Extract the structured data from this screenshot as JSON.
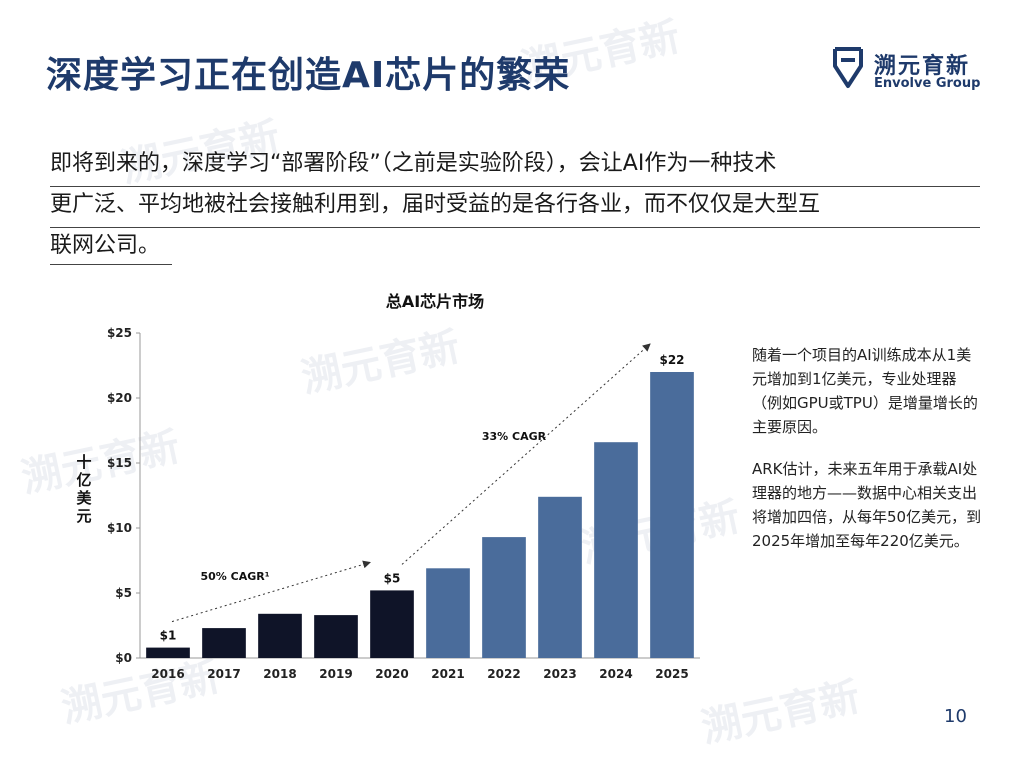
{
  "slide": {
    "title": "深度学习正在创造AI芯片的繁荣",
    "logo_cn": "溯元育新",
    "logo_en": "Envolve Group",
    "intro_lines": [
      "即将到来的，深度学习“部署阶段”（之前是实验阶段），会让AI作为一种技术",
      "更广泛、平均地被社会接触利用到，届时受益的是各行各业，而不仅仅是大型互",
      "联网公司。"
    ],
    "side_note": [
      "随着一个项目的AI训练成本从1美元增加到1亿美元，专业处理器（例如GPU或TPU）是增量增长的主要原因。",
      "ARK估计，未来五年用于承载AI处理器的地方——数据中心相关支出将增加四倍，从每年50亿美元，到2025年增加至每年220亿美元。"
    ],
    "page_number": "10"
  },
  "chart_data": {
    "type": "bar",
    "title": "总AI芯片市场",
    "ylabel": "十亿美元",
    "categories": [
      "2016",
      "2017",
      "2018",
      "2019",
      "2020",
      "2021",
      "2022",
      "2023",
      "2024",
      "2025"
    ],
    "values": [
      0.8,
      2.3,
      3.4,
      3.3,
      5.2,
      6.9,
      9.3,
      12.4,
      16.6,
      22.0
    ],
    "bar_colors": [
      "#0f1428",
      "#0f1428",
      "#0f1428",
      "#0f1428",
      "#0f1428",
      "#4a6c9b",
      "#4a6c9b",
      "#4a6c9b",
      "#4a6c9b",
      "#4a6c9b"
    ],
    "ylim": [
      0,
      25
    ],
    "yticks": [
      0,
      5,
      10,
      15,
      20,
      25
    ],
    "ytick_labels": [
      "$0",
      "$5",
      "$10",
      "$15",
      "$20",
      "$25"
    ],
    "data_labels": [
      {
        "category": "2016",
        "text": "$1"
      },
      {
        "category": "2020",
        "text": "$5"
      },
      {
        "category": "2025",
        "text": "$22"
      }
    ],
    "annotations": [
      {
        "text": "50% CAGR¹",
        "from": "2016",
        "to": "2020"
      },
      {
        "text": "33% CAGR",
        "from": "2020",
        "to": "2025"
      }
    ],
    "grid": false,
    "legend": "none"
  },
  "colors": {
    "title": "#1e3a6b",
    "historic_bar": "#0f1428",
    "forecast_bar": "#4a6c9b"
  }
}
